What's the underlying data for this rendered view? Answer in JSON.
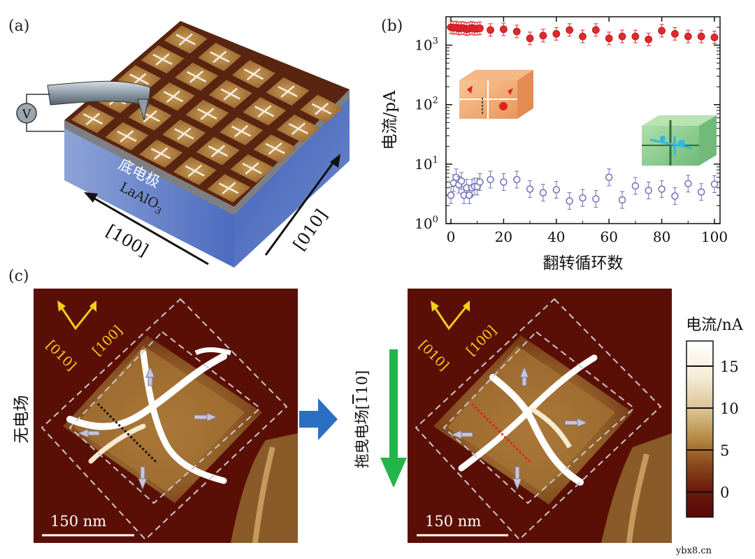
{
  "panel_labels": {
    "a": "(a)",
    "b": "(b)",
    "c": "(c)"
  },
  "panel_a": {
    "volt_symbol": "V",
    "bottom_electrode": "底电极",
    "substrate_main": "LaAlO",
    "substrate_sub": "3",
    "axis_100": "[100]",
    "axis_010": "[010]"
  },
  "chart_data": {
    "type": "scatter",
    "xlabel": "翻转循环数",
    "ylabel": "电流/pA",
    "xlim": [
      0,
      100
    ],
    "ylim": [
      1,
      3000
    ],
    "yscale": "log",
    "x_ticks": [
      0,
      20,
      40,
      60,
      80,
      100
    ],
    "x_tick_labels": [
      "0",
      "20",
      "40",
      "60",
      "80",
      "100"
    ],
    "y_ticks": [
      1,
      10,
      100,
      1000
    ],
    "y_tick_base": "10",
    "y_tick_exps": [
      "0",
      "1",
      "2",
      "3"
    ],
    "series": [
      {
        "marker": "filled-circle",
        "color": "#e0282e",
        "points": [
          [
            0,
            2000
          ],
          [
            1,
            1950
          ],
          [
            2,
            1980
          ],
          [
            3,
            1900
          ],
          [
            4,
            1950
          ],
          [
            5,
            1920
          ],
          [
            6,
            1850
          ],
          [
            7,
            1900
          ],
          [
            8,
            1950
          ],
          [
            9,
            1880
          ],
          [
            10,
            1900
          ],
          [
            11,
            1920
          ],
          [
            15,
            1800
          ],
          [
            20,
            1850
          ],
          [
            25,
            1700
          ],
          [
            30,
            1300
          ],
          [
            35,
            1450
          ],
          [
            40,
            1550
          ],
          [
            45,
            1800
          ],
          [
            50,
            1400
          ],
          [
            55,
            1800
          ],
          [
            60,
            1300
          ],
          [
            65,
            1400
          ],
          [
            70,
            1400
          ],
          [
            75,
            1250
          ],
          [
            80,
            1750
          ],
          [
            85,
            1550
          ],
          [
            90,
            1400
          ],
          [
            95,
            1400
          ],
          [
            100,
            1350
          ]
        ]
      },
      {
        "marker": "open-circle",
        "color": "#6f70b5",
        "points": [
          [
            0,
            3.0
          ],
          [
            1,
            4.8
          ],
          [
            2,
            6.0
          ],
          [
            3,
            4.5
          ],
          [
            4,
            5.2
          ],
          [
            5,
            3.0
          ],
          [
            6,
            4.0
          ],
          [
            7,
            3.0
          ],
          [
            8,
            4.0
          ],
          [
            9,
            4.2
          ],
          [
            10,
            4.2
          ],
          [
            11,
            5.0
          ],
          [
            15,
            5.5
          ],
          [
            20,
            5.0
          ],
          [
            25,
            5.5
          ],
          [
            30,
            3.8
          ],
          [
            35,
            3.3
          ],
          [
            40,
            3.7
          ],
          [
            45,
            2.4
          ],
          [
            50,
            2.7
          ],
          [
            55,
            2.6
          ],
          [
            60,
            6.0
          ],
          [
            65,
            2.5
          ],
          [
            70,
            4.3
          ],
          [
            75,
            3.6
          ],
          [
            80,
            3.8
          ],
          [
            85,
            2.9
          ],
          [
            90,
            4.7
          ],
          [
            95,
            3.4
          ],
          [
            100,
            4.6
          ]
        ]
      }
    ]
  },
  "panel_c": {
    "dir_010": "[010]",
    "dir_100": "[100]",
    "scale_bar": "150 nm",
    "left_label": "无电场",
    "right_label_main": "拖曳电场[",
    "right_label_one": "1",
    "right_label_rest": "10]",
    "colorbar": {
      "title": "电流/nA",
      "range": [
        -3,
        18
      ],
      "ticks": [
        0,
        5,
        10,
        15
      ],
      "tick_labels": [
        "0",
        "5",
        "10",
        "15"
      ]
    }
  },
  "watermark": "ybx8.cn"
}
